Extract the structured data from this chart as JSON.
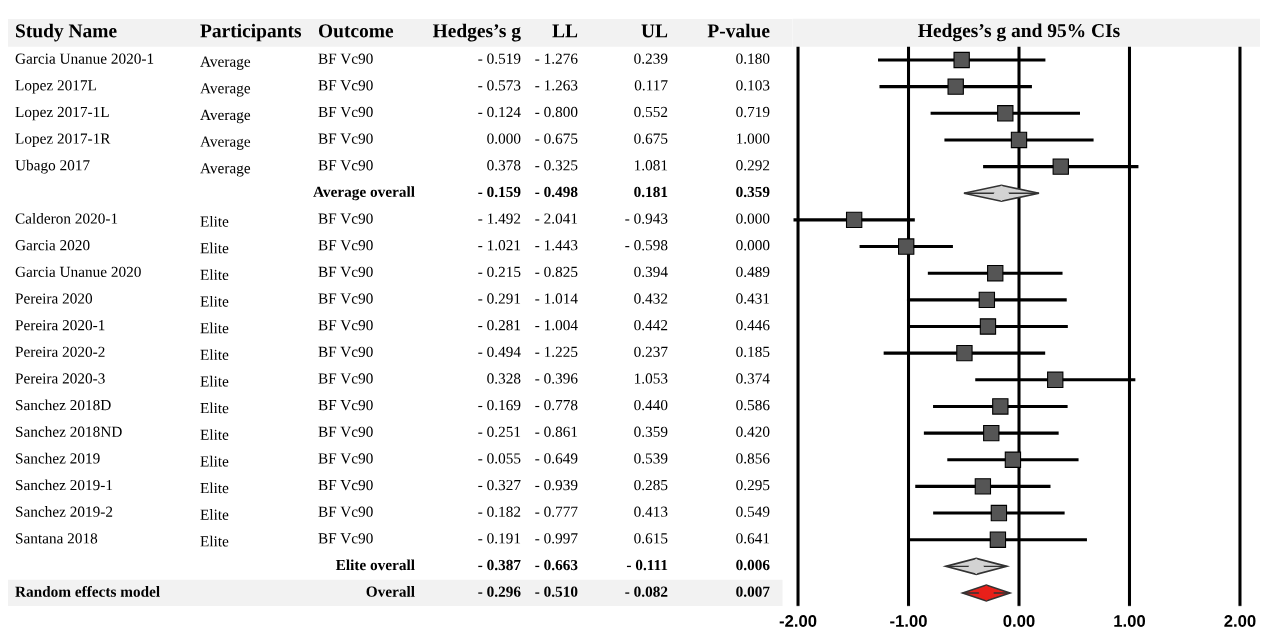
{
  "chart_data": [
    {
      "type": "other",
      "categories": [
        "Study Name",
        "Participants",
        "Outcome",
        "Hedges’s g",
        "LL",
        "UL",
        "P-value"
      ],
      "cell_labels": [
        [
          "Garcia Unanue 2020-1",
          "Average",
          "BF Vc90",
          "- 0.519",
          "- 1.276",
          "0.239",
          "0.180"
        ],
        [
          "Lopez 2017L",
          "Average",
          "BF Vc90",
          "- 0.573",
          "- 1.263",
          "0.117",
          "0.103"
        ],
        [
          "Lopez 2017-1L",
          "Average",
          "BF Vc90",
          "- 0.124",
          "- 0.800",
          "0.552",
          "0.719"
        ],
        [
          "Lopez 2017-1R",
          "Average",
          "BF Vc90",
          "0.000",
          "- 0.675",
          "0.675",
          "1.000"
        ],
        [
          "Ubago 2017",
          "Average",
          "BF Vc90",
          "0.378",
          "- 0.325",
          "1.081",
          "0.292"
        ],
        [
          null,
          null,
          "Average overall",
          "- 0.159",
          "- 0.498",
          "0.181",
          "0.359"
        ],
        [
          "Calderon 2020-1",
          "Elite",
          "BF Vc90",
          "- 1.492",
          "- 2.041",
          "- 0.943",
          "0.000"
        ],
        [
          "Garcia 2020",
          "Elite",
          "BF Vc90",
          "- 1.021",
          "- 1.443",
          "- 0.598",
          "0.000"
        ],
        [
          "Garcia Unanue 2020",
          "Elite",
          "BF Vc90",
          "- 0.215",
          "- 0.825",
          "0.394",
          "0.489"
        ],
        [
          "Pereira 2020",
          "Elite",
          "BF Vc90",
          "- 0.291",
          "- 1.014",
          "0.432",
          "0.431"
        ],
        [
          "Pereira 2020-1",
          "Elite",
          "BF Vc90",
          "- 0.281",
          "- 1.004",
          "0.442",
          "0.446"
        ],
        [
          "Pereira 2020-2",
          "Elite",
          "BF Vc90",
          "- 0.494",
          "- 1.225",
          "0.237",
          "0.185"
        ],
        [
          "Pereira 2020-3",
          "Elite",
          "BF Vc90",
          "0.328",
          "- 0.396",
          "1.053",
          "0.374"
        ],
        [
          "Sanchez 2018D",
          "Elite",
          "BF Vc90",
          "- 0.169",
          "- 0.778",
          "0.440",
          "0.586"
        ],
        [
          "Sanchez 2018ND",
          "Elite",
          "BF Vc90",
          "- 0.251",
          "- 0.861",
          "0.359",
          "0.420"
        ],
        [
          "Sanchez 2019",
          "Elite",
          "BF Vc90",
          "- 0.055",
          "- 0.649",
          "0.539",
          "0.856"
        ],
        [
          "Sanchez 2019-1",
          "Elite",
          "BF Vc90",
          "- 0.327",
          "- 0.939",
          "0.285",
          "0.295"
        ],
        [
          "Sanchez 2019-2",
          "Elite",
          "BF Vc90",
          "- 0.182",
          "- 0.777",
          "0.413",
          "0.549"
        ],
        [
          "Santana 2018",
          "Elite",
          "BF Vc90",
          "- 0.191",
          "- 0.997",
          "0.615",
          "0.641"
        ],
        [
          null,
          null,
          "Elite overall",
          "- 0.387",
          "- 0.663",
          "- 0.111",
          "0.006"
        ],
        [
          "Random effects model",
          null,
          "Overall",
          "- 0.296",
          "- 0.510",
          "- 0.082",
          "0.007"
        ]
      ]
    },
    {
      "type": "scatter",
      "title": "Hedges’s g and 95% CIs",
      "categories": [
        null,
        null,
        null,
        null,
        null,
        null,
        null,
        null,
        null,
        null,
        null,
        null,
        null,
        null,
        null,
        null,
        null,
        null,
        null,
        null,
        null
      ],
      "xlim": [
        -2.05,
        2.05
      ],
      "xticks": [
        {
          "value": -2,
          "label": "-2.00"
        },
        {
          "value": -1,
          "label": "-1.00"
        },
        {
          "value": 0,
          "label": "0.00"
        },
        {
          "value": 1,
          "label": "1.00"
        },
        {
          "value": 2,
          "label": "2.00"
        }
      ],
      "grid": "x",
      "tick_labels": "x",
      "orientation": "horizontal",
      "series": [
        {
          "marker": "square",
          "color": "#555555",
          "values": [
            -0.519,
            -0.573,
            -0.124,
            0.0,
            0.378,
            null,
            -1.492,
            -1.021,
            -0.215,
            -0.291,
            -0.281,
            -0.494,
            0.328,
            -0.169,
            -0.251,
            -0.055,
            -0.327,
            -0.182,
            -0.191,
            null,
            null
          ],
          "errors": [
            [
              -1.276,
              0.239
            ],
            [
              -1.263,
              0.117
            ],
            [
              -0.8,
              0.552
            ],
            [
              -0.675,
              0.675
            ],
            [
              -0.325,
              1.081
            ],
            null,
            [
              -2.041,
              -0.943
            ],
            [
              -1.443,
              -0.598
            ],
            [
              -0.825,
              0.394
            ],
            [
              -1.014,
              0.432
            ],
            [
              -1.004,
              0.442
            ],
            [
              -1.225,
              0.237
            ],
            [
              -0.396,
              1.053
            ],
            [
              -0.778,
              0.44
            ],
            [
              -0.861,
              0.359
            ],
            [
              -0.649,
              0.539
            ],
            [
              -0.939,
              0.285
            ],
            [
              -0.777,
              0.413
            ],
            [
              -0.997,
              0.615
            ],
            null,
            null
          ]
        },
        {
          "marker": "diamond",
          "colors": [
            null,
            null,
            null,
            null,
            null,
            "#d3d3d3",
            null,
            null,
            null,
            null,
            null,
            null,
            null,
            null,
            null,
            null,
            null,
            null,
            null,
            "#d3d3d3",
            "#e8201a"
          ],
          "values": [
            null,
            null,
            null,
            null,
            null,
            -0.159,
            null,
            null,
            null,
            null,
            null,
            null,
            null,
            null,
            null,
            null,
            null,
            null,
            null,
            -0.387,
            -0.296
          ],
          "errors": [
            null,
            null,
            null,
            null,
            null,
            [
              -0.498,
              0.181
            ],
            null,
            null,
            null,
            null,
            null,
            null,
            null,
            null,
            null,
            null,
            null,
            null,
            null,
            [
              -0.663,
              -0.111
            ],
            [
              -0.51,
              -0.082
            ]
          ]
        }
      ]
    }
  ]
}
